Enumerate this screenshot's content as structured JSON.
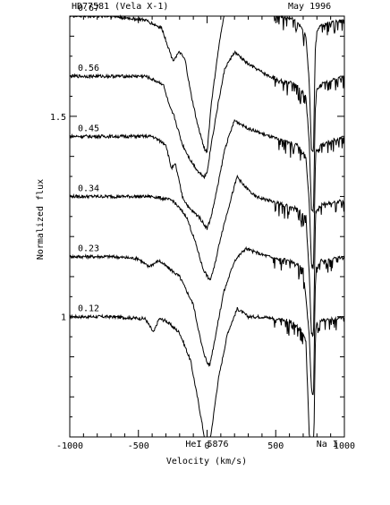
{
  "chart_data": {
    "type": "line",
    "title_left": "HD77581 (Vela X-1)",
    "title_right": "May  1996",
    "xlabel": "Velocity (km/s)",
    "ylabel": "Normalized flux",
    "xlim": [
      -1000,
      1000
    ],
    "ylim": [
      0.7,
      1.75
    ],
    "x_ticks": [
      -1000,
      -500,
      0,
      500,
      1000
    ],
    "x_tick_labels": [
      "-1000",
      "-500",
      "0",
      "500",
      "1000"
    ],
    "y_ticks": [
      1,
      1.5
    ],
    "y_tick_labels": [
      "1",
      "1.5"
    ],
    "annotations": [
      {
        "text": "HeI 5876",
        "x": 0,
        "y": 0.675
      },
      {
        "text": "Na I",
        "x": 875,
        "y": 0.675
      }
    ],
    "series": [
      {
        "phase": "0.12",
        "offset": 1.0,
        "depth": 0.33,
        "x": [
          -1000,
          -700,
          -450,
          -390,
          -350,
          -300,
          -200,
          -120,
          -60,
          -20,
          0,
          30,
          80,
          150,
          220,
          300,
          400,
          500,
          600,
          680,
          720,
          745,
          760,
          775,
          790,
          830,
          1000
        ],
        "y": [
          1.0,
          1.0,
          0.995,
          0.96,
          0.995,
          0.99,
          0.96,
          0.89,
          0.78,
          0.7,
          0.67,
          0.71,
          0.84,
          0.96,
          1.02,
          1.0,
          1.0,
          0.995,
          0.99,
          0.97,
          0.94,
          0.7,
          0.62,
          0.62,
          0.98,
          0.99,
          1.0
        ]
      },
      {
        "phase": "0.23",
        "offset": 1.15,
        "depth": 0.27,
        "x": [
          -1000,
          -700,
          -500,
          -430,
          -400,
          -350,
          -200,
          -100,
          -40,
          0,
          20,
          60,
          120,
          200,
          280,
          400,
          500,
          600,
          700,
          745,
          760,
          775,
          790,
          830,
          1000
        ],
        "y": [
          1.15,
          1.15,
          1.145,
          1.125,
          1.13,
          1.14,
          1.1,
          1.03,
          0.93,
          0.885,
          0.88,
          0.95,
          1.06,
          1.14,
          1.17,
          1.155,
          1.145,
          1.14,
          1.12,
          0.95,
          0.82,
          0.8,
          1.12,
          1.14,
          1.15
        ]
      },
      {
        "phase": "0.34",
        "offset": 1.3,
        "depth": 0.22,
        "x": [
          -1000,
          -700,
          -400,
          -250,
          -150,
          -80,
          -30,
          20,
          50,
          100,
          170,
          220,
          260,
          350,
          450,
          550,
          650,
          720,
          745,
          760,
          775,
          790,
          830,
          1000
        ],
        "y": [
          1.3,
          1.3,
          1.3,
          1.29,
          1.25,
          1.18,
          1.12,
          1.09,
          1.12,
          1.2,
          1.29,
          1.35,
          1.33,
          1.3,
          1.29,
          1.28,
          1.27,
          1.25,
          1.1,
          0.96,
          0.95,
          1.26,
          1.28,
          1.29
        ]
      },
      {
        "phase": "0.45",
        "offset": 1.45,
        "depth": 0.2,
        "x": [
          -1000,
          -700,
          -400,
          -300,
          -260,
          -230,
          -180,
          -130,
          -60,
          -20,
          0,
          30,
          80,
          130,
          200,
          300,
          450,
          550,
          650,
          720,
          745,
          760,
          775,
          790,
          830,
          1000
        ],
        "y": [
          1.45,
          1.45,
          1.45,
          1.43,
          1.37,
          1.38,
          1.3,
          1.27,
          1.25,
          1.23,
          1.22,
          1.25,
          1.33,
          1.42,
          1.49,
          1.47,
          1.45,
          1.44,
          1.43,
          1.4,
          1.28,
          1.13,
          1.12,
          1.41,
          1.43,
          1.45
        ]
      },
      {
        "phase": "0.56",
        "offset": 1.6,
        "depth": 0.2,
        "x": [
          -1000,
          -700,
          -450,
          -320,
          -270,
          -240,
          -180,
          -120,
          -60,
          -20,
          0,
          30,
          80,
          130,
          200,
          300,
          450,
          550,
          650,
          720,
          745,
          760,
          775,
          790,
          830,
          1000
        ],
        "y": [
          1.6,
          1.6,
          1.6,
          1.58,
          1.52,
          1.5,
          1.43,
          1.39,
          1.36,
          1.35,
          1.36,
          1.43,
          1.53,
          1.62,
          1.66,
          1.63,
          1.6,
          1.59,
          1.58,
          1.55,
          1.43,
          1.27,
          1.26,
          1.56,
          1.58,
          1.6
        ]
      },
      {
        "phase": "0.67",
        "offset": 1.75,
        "depth": 0.2,
        "x": [
          -1000,
          -700,
          -450,
          -330,
          -250,
          -200,
          -160,
          -120,
          -70,
          -20,
          0,
          30,
          80,
          130,
          200,
          260,
          350,
          450,
          550,
          650,
          720,
          745,
          760,
          775,
          790,
          830,
          1000
        ],
        "y": [
          1.75,
          1.75,
          1.74,
          1.72,
          1.64,
          1.66,
          1.64,
          1.56,
          1.48,
          1.42,
          1.41,
          1.53,
          1.66,
          1.77,
          1.8,
          1.79,
          1.77,
          1.76,
          1.75,
          1.74,
          1.7,
          1.58,
          1.42,
          1.41,
          1.71,
          1.73,
          1.74
        ]
      }
    ]
  }
}
